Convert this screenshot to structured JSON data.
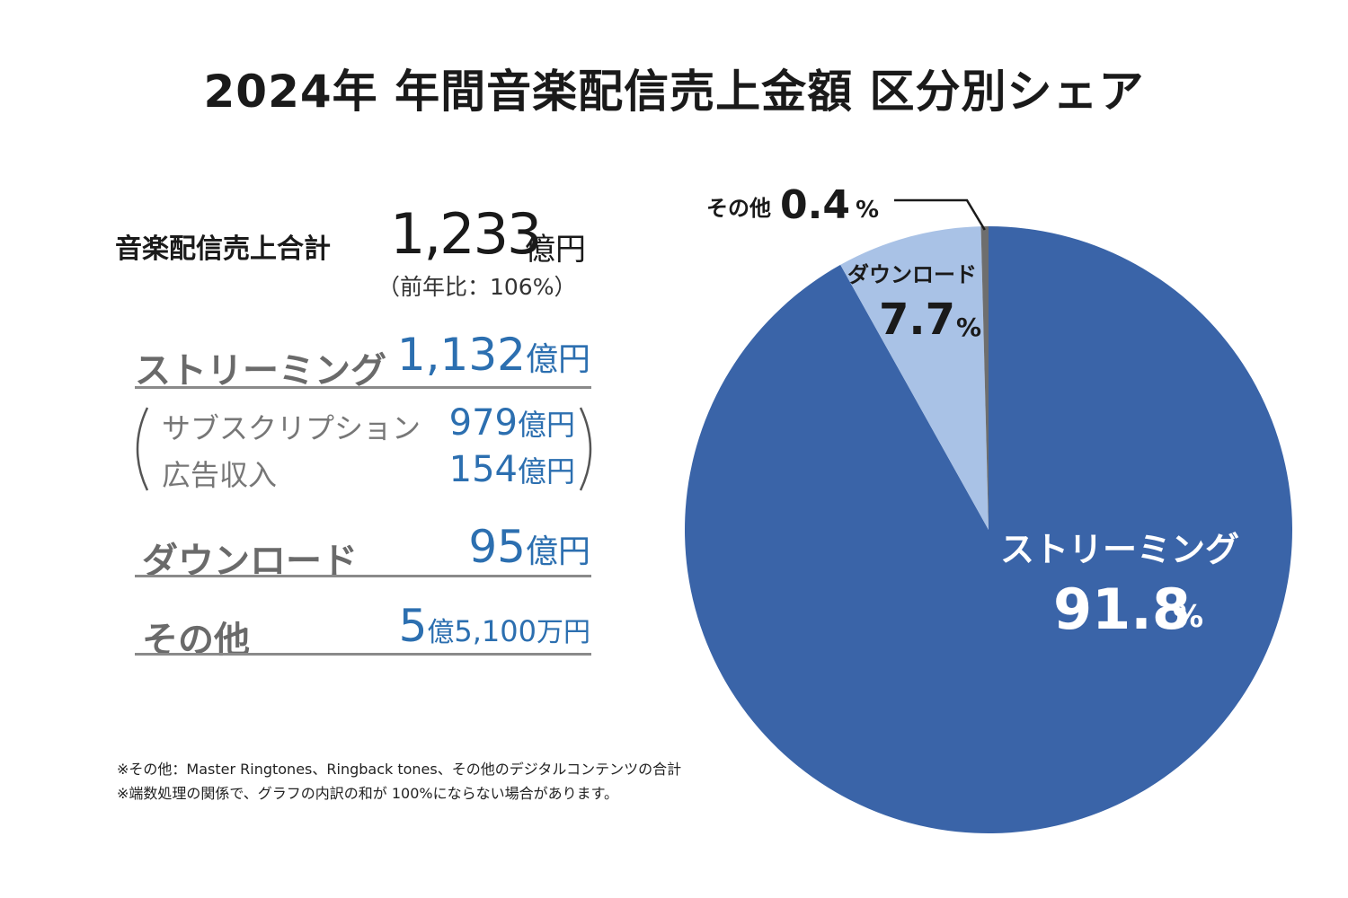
{
  "title": "2024年 年間音楽配信売上金額 区分別シェア",
  "summary": {
    "total_label": "音楽配信売上合計",
    "total_value": "1,233",
    "total_unit": "億円",
    "yoy": "（前年比：106%）"
  },
  "breakdown": {
    "streaming": {
      "label": "ストリーミング",
      "value": "1,132",
      "unit": "億円"
    },
    "subscription": {
      "label": "サブスクリプション",
      "value": "979",
      "unit": "億円"
    },
    "advertising": {
      "label": "広告収入",
      "value": "154",
      "unit": "億円"
    },
    "download": {
      "label": "ダウンロード",
      "value": "95",
      "unit": "億円"
    },
    "other": {
      "label": "その他",
      "value": "5",
      "unit": "億",
      "value2": "5,100",
      "unit2": "万円"
    }
  },
  "notes": [
    "※その他：Master Ringtones、Ringback tones、その他のデジタルコンテンツの合計",
    "※端数処理の関係で、グラフの内訳の和が 100%にならない場合があります。"
  ],
  "chart_data": {
    "type": "pie",
    "title": "2024年 年間音楽配信売上金額 区分別シェア",
    "unit": "%",
    "slices": [
      {
        "label": "ストリーミング",
        "value": 91.8,
        "display": "91.8",
        "color": "#3a64a8"
      },
      {
        "label": "ダウンロード",
        "value": 7.7,
        "display": "7.7",
        "color": "#a9c2e6"
      },
      {
        "label": "その他",
        "value": 0.4,
        "display": "0.4",
        "color": "#6e6e6e"
      }
    ]
  },
  "colors": {
    "streaming": "#3a64a8",
    "download": "#a9c2e6",
    "other": "#6e6e6e",
    "value_text": "#2c6fb0",
    "label_gray": "#6a6a6a"
  }
}
